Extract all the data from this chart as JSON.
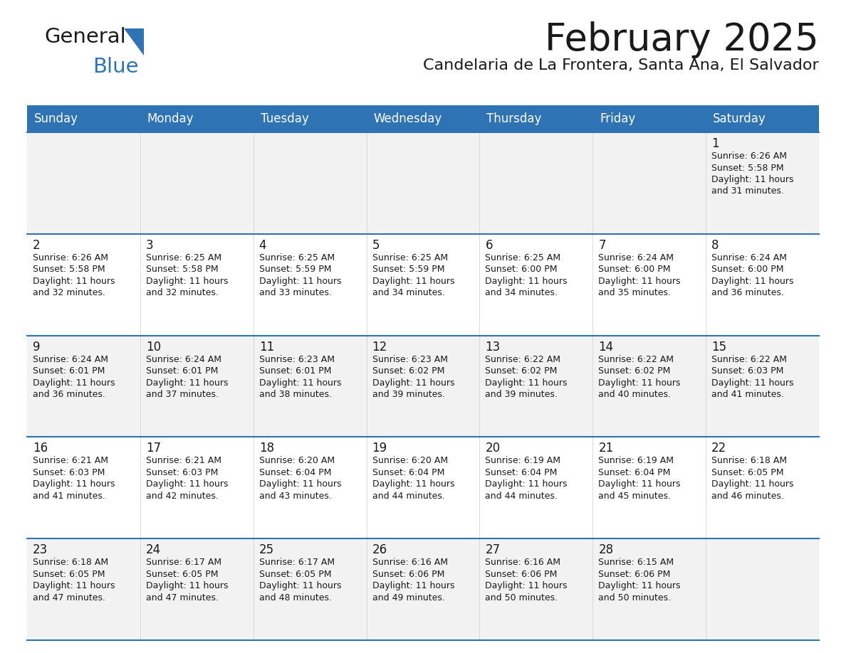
{
  "title": "February 2025",
  "subtitle": "Candelaria de La Frontera, Santa Ana, El Salvador",
  "header_bg": "#2E74B5",
  "header_text": "#FFFFFF",
  "row_bg_odd": "#F2F2F2",
  "row_bg_even": "#FFFFFF",
  "separator_color": "#2E74B5",
  "day_headers": [
    "Sunday",
    "Monday",
    "Tuesday",
    "Wednesday",
    "Thursday",
    "Friday",
    "Saturday"
  ],
  "calendar_data": [
    [
      null,
      null,
      null,
      null,
      null,
      null,
      {
        "day": "1",
        "sunrise": "6:26 AM",
        "sunset": "5:58 PM",
        "daylight_line1": "Daylight: 11 hours",
        "daylight_line2": "and 31 minutes."
      }
    ],
    [
      {
        "day": "2",
        "sunrise": "6:26 AM",
        "sunset": "5:58 PM",
        "daylight_line1": "Daylight: 11 hours",
        "daylight_line2": "and 32 minutes."
      },
      {
        "day": "3",
        "sunrise": "6:25 AM",
        "sunset": "5:58 PM",
        "daylight_line1": "Daylight: 11 hours",
        "daylight_line2": "and 32 minutes."
      },
      {
        "day": "4",
        "sunrise": "6:25 AM",
        "sunset": "5:59 PM",
        "daylight_line1": "Daylight: 11 hours",
        "daylight_line2": "and 33 minutes."
      },
      {
        "day": "5",
        "sunrise": "6:25 AM",
        "sunset": "5:59 PM",
        "daylight_line1": "Daylight: 11 hours",
        "daylight_line2": "and 34 minutes."
      },
      {
        "day": "6",
        "sunrise": "6:25 AM",
        "sunset": "6:00 PM",
        "daylight_line1": "Daylight: 11 hours",
        "daylight_line2": "and 34 minutes."
      },
      {
        "day": "7",
        "sunrise": "6:24 AM",
        "sunset": "6:00 PM",
        "daylight_line1": "Daylight: 11 hours",
        "daylight_line2": "and 35 minutes."
      },
      {
        "day": "8",
        "sunrise": "6:24 AM",
        "sunset": "6:00 PM",
        "daylight_line1": "Daylight: 11 hours",
        "daylight_line2": "and 36 minutes."
      }
    ],
    [
      {
        "day": "9",
        "sunrise": "6:24 AM",
        "sunset": "6:01 PM",
        "daylight_line1": "Daylight: 11 hours",
        "daylight_line2": "and 36 minutes."
      },
      {
        "day": "10",
        "sunrise": "6:24 AM",
        "sunset": "6:01 PM",
        "daylight_line1": "Daylight: 11 hours",
        "daylight_line2": "and 37 minutes."
      },
      {
        "day": "11",
        "sunrise": "6:23 AM",
        "sunset": "6:01 PM",
        "daylight_line1": "Daylight: 11 hours",
        "daylight_line2": "and 38 minutes."
      },
      {
        "day": "12",
        "sunrise": "6:23 AM",
        "sunset": "6:02 PM",
        "daylight_line1": "Daylight: 11 hours",
        "daylight_line2": "and 39 minutes."
      },
      {
        "day": "13",
        "sunrise": "6:22 AM",
        "sunset": "6:02 PM",
        "daylight_line1": "Daylight: 11 hours",
        "daylight_line2": "and 39 minutes."
      },
      {
        "day": "14",
        "sunrise": "6:22 AM",
        "sunset": "6:02 PM",
        "daylight_line1": "Daylight: 11 hours",
        "daylight_line2": "and 40 minutes."
      },
      {
        "day": "15",
        "sunrise": "6:22 AM",
        "sunset": "6:03 PM",
        "daylight_line1": "Daylight: 11 hours",
        "daylight_line2": "and 41 minutes."
      }
    ],
    [
      {
        "day": "16",
        "sunrise": "6:21 AM",
        "sunset": "6:03 PM",
        "daylight_line1": "Daylight: 11 hours",
        "daylight_line2": "and 41 minutes."
      },
      {
        "day": "17",
        "sunrise": "6:21 AM",
        "sunset": "6:03 PM",
        "daylight_line1": "Daylight: 11 hours",
        "daylight_line2": "and 42 minutes."
      },
      {
        "day": "18",
        "sunrise": "6:20 AM",
        "sunset": "6:04 PM",
        "daylight_line1": "Daylight: 11 hours",
        "daylight_line2": "and 43 minutes."
      },
      {
        "day": "19",
        "sunrise": "6:20 AM",
        "sunset": "6:04 PM",
        "daylight_line1": "Daylight: 11 hours",
        "daylight_line2": "and 44 minutes."
      },
      {
        "day": "20",
        "sunrise": "6:19 AM",
        "sunset": "6:04 PM",
        "daylight_line1": "Daylight: 11 hours",
        "daylight_line2": "and 44 minutes."
      },
      {
        "day": "21",
        "sunrise": "6:19 AM",
        "sunset": "6:04 PM",
        "daylight_line1": "Daylight: 11 hours",
        "daylight_line2": "and 45 minutes."
      },
      {
        "day": "22",
        "sunrise": "6:18 AM",
        "sunset": "6:05 PM",
        "daylight_line1": "Daylight: 11 hours",
        "daylight_line2": "and 46 minutes."
      }
    ],
    [
      {
        "day": "23",
        "sunrise": "6:18 AM",
        "sunset": "6:05 PM",
        "daylight_line1": "Daylight: 11 hours",
        "daylight_line2": "and 47 minutes."
      },
      {
        "day": "24",
        "sunrise": "6:17 AM",
        "sunset": "6:05 PM",
        "daylight_line1": "Daylight: 11 hours",
        "daylight_line2": "and 47 minutes."
      },
      {
        "day": "25",
        "sunrise": "6:17 AM",
        "sunset": "6:05 PM",
        "daylight_line1": "Daylight: 11 hours",
        "daylight_line2": "and 48 minutes."
      },
      {
        "day": "26",
        "sunrise": "6:16 AM",
        "sunset": "6:06 PM",
        "daylight_line1": "Daylight: 11 hours",
        "daylight_line2": "and 49 minutes."
      },
      {
        "day": "27",
        "sunrise": "6:16 AM",
        "sunset": "6:06 PM",
        "daylight_line1": "Daylight: 11 hours",
        "daylight_line2": "and 50 minutes."
      },
      {
        "day": "28",
        "sunrise": "6:15 AM",
        "sunset": "6:06 PM",
        "daylight_line1": "Daylight: 11 hours",
        "daylight_line2": "and 50 minutes."
      },
      null
    ]
  ],
  "logo_general_color": "#1A1A1A",
  "logo_blue_color": "#2E74B5",
  "logo_triangle_color": "#2E74B5",
  "title_fontsize": 38,
  "subtitle_fontsize": 16,
  "header_fontsize": 12,
  "day_num_fontsize": 12,
  "cell_text_fontsize": 9
}
